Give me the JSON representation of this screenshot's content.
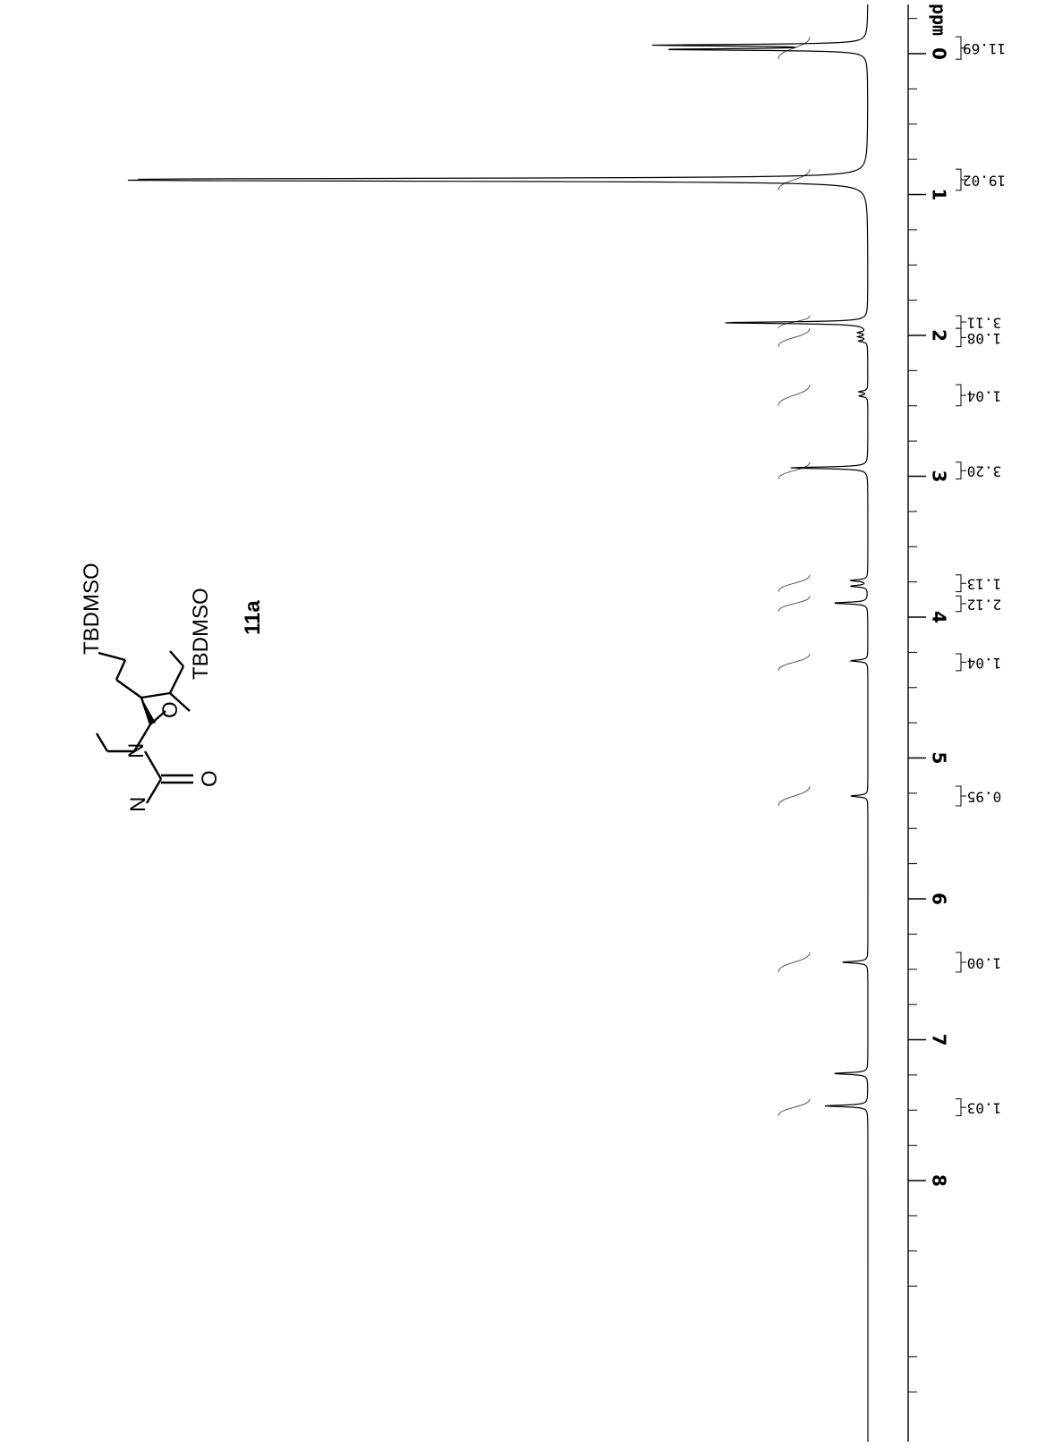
{
  "chart_data": {
    "type": "line",
    "title": "",
    "xlabel": "ppm",
    "ylabel": "",
    "xlim": [
      -0.55,
      9.5
    ],
    "x_ticks": [
      "0",
      "1",
      "2",
      "3",
      "4",
      "5",
      "6",
      "7",
      "8"
    ],
    "grid": false,
    "orientation": "rotated-90",
    "peaks": [
      {
        "ppm": -0.06,
        "height": 0.24
      },
      {
        "ppm": -0.03,
        "height": 0.23
      },
      {
        "ppm": 0.89,
        "height": 0.62
      },
      {
        "ppm": 0.9,
        "height": 0.64
      },
      {
        "ppm": 1.91,
        "height": 0.17
      },
      {
        "ppm": 1.98,
        "height": 0.01
      },
      {
        "ppm": 2.01,
        "height": 0.01
      },
      {
        "ppm": 2.04,
        "height": 0.01
      },
      {
        "ppm": 2.4,
        "height": 0.01
      },
      {
        "ppm": 2.43,
        "height": 0.01
      },
      {
        "ppm": 2.94,
        "height": 0.09
      },
      {
        "ppm": 3.74,
        "height": 0.02
      },
      {
        "ppm": 3.78,
        "height": 0.02
      },
      {
        "ppm": 3.9,
        "height": 0.04
      },
      {
        "ppm": 4.31,
        "height": 0.02
      },
      {
        "ppm": 5.27,
        "height": 0.02
      },
      {
        "ppm": 6.45,
        "height": 0.03
      },
      {
        "ppm": 7.24,
        "height": 0.04
      },
      {
        "ppm": 7.47,
        "height": 0.05
      }
    ],
    "integrals": [
      {
        "label": "11.69",
        "from": -0.12,
        "to": 0.04
      },
      {
        "label": "19.02",
        "from": 0.82,
        "to": 0.97
      },
      {
        "label": "3.11",
        "from": 1.86,
        "to": 1.95
      },
      {
        "label": "1.08",
        "from": 1.95,
        "to": 2.08
      },
      {
        "label": "1.04",
        "from": 2.35,
        "to": 2.5
      },
      {
        "label": "3.20",
        "from": 2.9,
        "to": 3.02
      },
      {
        "label": "1.13",
        "from": 3.7,
        "to": 3.82
      },
      {
        "label": "2.12",
        "from": 3.85,
        "to": 3.96
      },
      {
        "label": "1.04",
        "from": 4.26,
        "to": 4.38
      },
      {
        "label": "0.95",
        "from": 5.2,
        "to": 5.34
      },
      {
        "label": "1.00",
        "from": 6.38,
        "to": 6.52
      },
      {
        "label": "1.03",
        "from": 7.42,
        "to": 7.54
      }
    ]
  },
  "structure": {
    "labels": {
      "oxo": "O",
      "n3": "N",
      "n1": "N",
      "ring_o": "O",
      "tbdmso_primary": "TBDMSO",
      "tbdmso_secondary": "TBDMSO"
    },
    "compound_label": "11a"
  }
}
